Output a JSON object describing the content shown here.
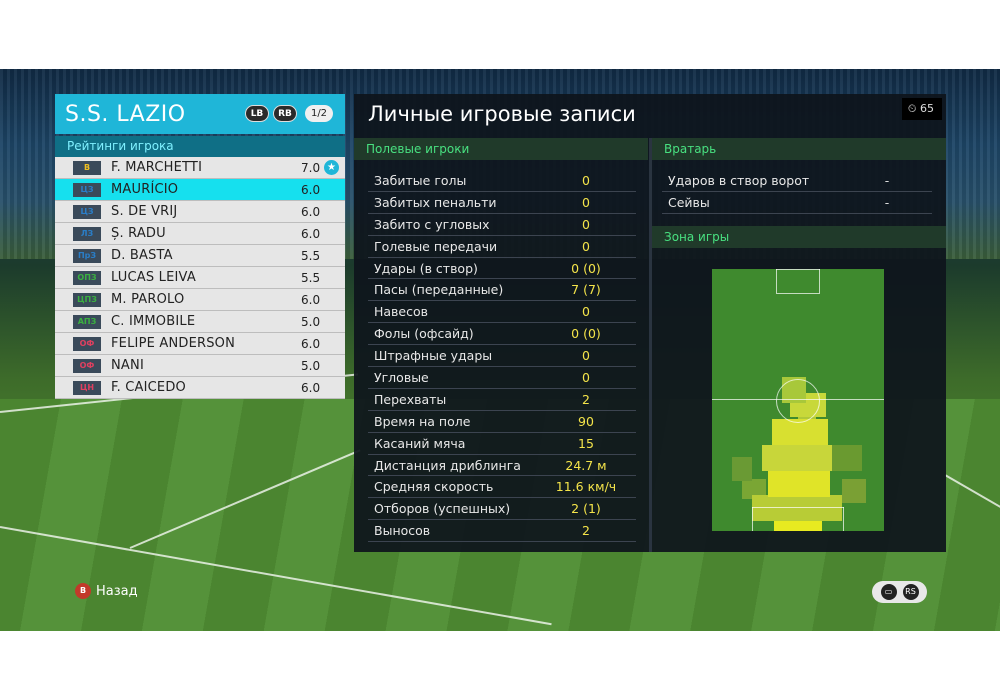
{
  "team": {
    "name": "S.S. LAZIO",
    "lb": "LB",
    "rb": "RB",
    "page": "1/2"
  },
  "ratings_header": "Рейтинги игрока",
  "players": [
    {
      "pos": "В",
      "pos_color": "#f0c020",
      "name": "F. MARCHETTI",
      "rating": "7.0",
      "star": true
    },
    {
      "pos": "ЦЗ",
      "pos_color": "#2a7ec8",
      "name": "MAURÍCIO",
      "rating": "6.0",
      "selected": true
    },
    {
      "pos": "ЦЗ",
      "pos_color": "#2a7ec8",
      "name": "S. DE VRIJ",
      "rating": "6.0"
    },
    {
      "pos": "ЛЗ",
      "pos_color": "#2a7ec8",
      "name": "Ș. RADU",
      "rating": "6.0"
    },
    {
      "pos": "ПрЗ",
      "pos_color": "#2a7ec8",
      "name": "D. BASTA",
      "rating": "5.5"
    },
    {
      "pos": "ОПЗ",
      "pos_color": "#3ab040",
      "name": "LUCAS LEIVA",
      "rating": "5.5"
    },
    {
      "pos": "ЦПЗ",
      "pos_color": "#3ab040",
      "name": "M. PAROLO",
      "rating": "6.0"
    },
    {
      "pos": "АПЗ",
      "pos_color": "#3ab040",
      "name": "C. IMMOBILE",
      "rating": "5.0"
    },
    {
      "pos": "ОФ",
      "pos_color": "#e04060",
      "name": "FELIPE ANDERSON",
      "rating": "6.0"
    },
    {
      "pos": "ОФ",
      "pos_color": "#e04060",
      "name": "NANI",
      "rating": "5.0"
    },
    {
      "pos": "ЦН",
      "pos_color": "#e04060",
      "name": "F. CAICEDO",
      "rating": "6.0"
    }
  ],
  "main_title": "Личные игровые записи",
  "timer": "65",
  "field_header": "Полевые игроки",
  "field_stats": [
    {
      "label": "Забитые голы",
      "value": "0"
    },
    {
      "label": "Забитых пенальти",
      "value": "0"
    },
    {
      "label": "Забито с угловых",
      "value": "0"
    },
    {
      "label": "Голевые передачи",
      "value": "0"
    },
    {
      "label": "Удары (в створ)",
      "value": "0 (0)"
    },
    {
      "label": "Пасы (переданные)",
      "value": "7 (7)"
    },
    {
      "label": "Навесов",
      "value": "0"
    },
    {
      "label": "Фолы (офсайд)",
      "value": "0 (0)"
    },
    {
      "label": "Штрафные удары",
      "value": "0"
    },
    {
      "label": "Угловые",
      "value": "0"
    },
    {
      "label": "Перехваты",
      "value": "2"
    },
    {
      "label": "Время на поле",
      "value": "90"
    },
    {
      "label": "Касаний мяча",
      "value": "15"
    },
    {
      "label": "Дистанция дриблинга",
      "value": "24.7 м"
    },
    {
      "label": "Средняя скорость",
      "value": "11.6 км/ч"
    },
    {
      "label": "Отборов (успешных)",
      "value": "2 (1)"
    },
    {
      "label": "Выносов",
      "value": "2"
    }
  ],
  "gk_header": "Вратарь",
  "gk_stats": [
    {
      "label": "Ударов в створ ворот",
      "value": "-"
    },
    {
      "label": "Сейвы",
      "value": "-"
    }
  ],
  "zone_header": "Зона игры",
  "back_button": {
    "key": "B",
    "label": "Назад"
  },
  "bottom_icons": [
    "chat-icon",
    "rs-icon"
  ],
  "bottom_icon_text": {
    "rs": "RS"
  }
}
